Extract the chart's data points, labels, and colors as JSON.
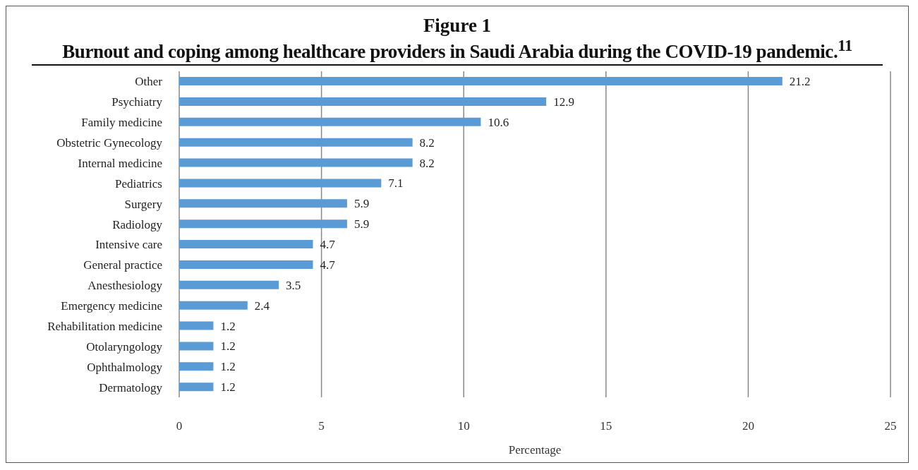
{
  "chart_data": {
    "type": "bar",
    "orientation": "horizontal",
    "title": "Figure 1",
    "subtitle": "Burnout and coping among healthcare providers in Saudi Arabia during the COVID-19 pandemic.$^{11}$",
    "xlabel": "Percentage",
    "categories": [
      "Other",
      "Psychiatry",
      "Family medicine",
      "Obstetric Gynecology",
      "Internal medicine",
      "Pediatrics",
      "Surgery",
      "Radiology",
      "Intensive care",
      "General practice",
      "Anesthesiology",
      "Emergency medicine",
      "Rehabilitation medicine",
      "Otolaryngology",
      "Ophthalmology",
      "Dermatology"
    ],
    "values": [
      21.2,
      12.9,
      10.6,
      8.2,
      8.2,
      7.1,
      5.9,
      5.9,
      4.7,
      4.7,
      3.5,
      2.4,
      1.2,
      1.2,
      1.2,
      1.2
    ],
    "color": "#5b9bd5",
    "xlim": [
      0,
      25
    ],
    "xticks": [
      0,
      5,
      10,
      15,
      20,
      25
    ],
    "grid": "x",
    "data_labels": true,
    "legend": false
  }
}
